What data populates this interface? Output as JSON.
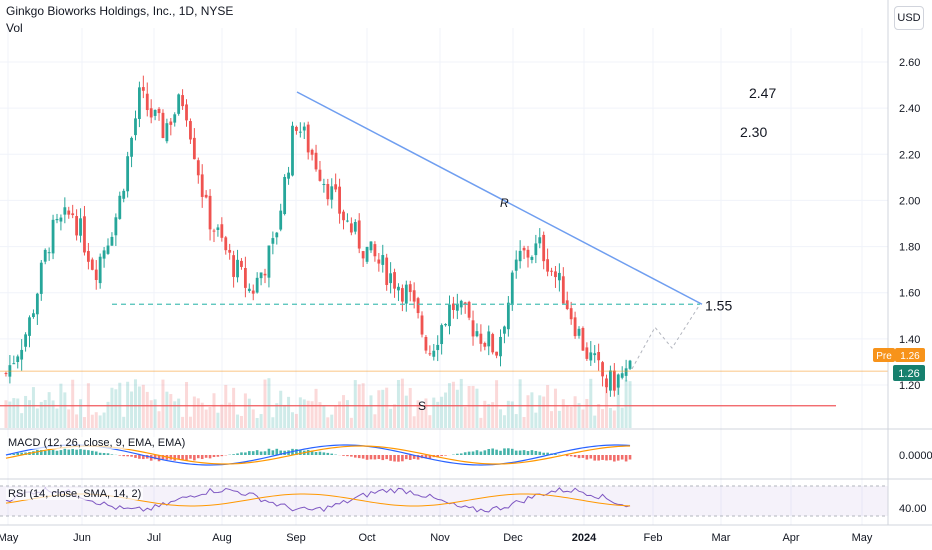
{
  "header": {
    "title": "Ginkgo Bioworks Holdings, Inc., 1D, NYSE",
    "vol_label": "Vol",
    "currency": "USD"
  },
  "colors": {
    "up": "#26a69a",
    "down": "#ef5350",
    "trendline": "#6f9ef0",
    "support_dashed": "#4cc0b6",
    "support_solid": "#f0585c",
    "pre_badge": "#f7931a",
    "last_badge": "#17806e",
    "macd": "#2962ff",
    "signal": "#ff9800",
    "rsi": "#7e57c2",
    "rsi_ma": "#ff9800"
  },
  "annotations": {
    "r_label": "R",
    "s_label": "S",
    "level_155": "1.55",
    "level_247": "2.47",
    "level_230": "2.30"
  },
  "badges": {
    "pre_label": "Pre",
    "pre_value": "1.26",
    "last_value": "1.26"
  },
  "indicators": {
    "macd_label": "MACD (12, 26, close, 9, EMA, EMA)",
    "macd_value": "0.0000",
    "rsi_label": "RSI (14, close, SMA, 14, 2)",
    "rsi_value": "40.00"
  },
  "chart_data": {
    "type": "candlestick",
    "title": "Ginkgo Bioworks Holdings, Inc., 1D, NYSE",
    "y_ticks": [
      "2.60",
      "2.40",
      "2.20",
      "2.00",
      "1.80",
      "1.60",
      "1.40",
      "1.20"
    ],
    "ylim": [
      1.1,
      2.65
    ],
    "x_ticks": [
      "May",
      "Jun",
      "Jul",
      "Aug",
      "Sep",
      "Oct",
      "Nov",
      "Dec",
      "2024",
      "Feb",
      "Mar",
      "Apr",
      "May"
    ],
    "price_path": [
      [
        "May",
        1.25
      ],
      [
        "May",
        1.45
      ],
      [
        "Jun",
        1.85
      ],
      [
        "Jun",
        1.95
      ],
      [
        "Jun",
        1.7
      ],
      [
        "Jul",
        1.95
      ],
      [
        "Jul",
        2.45
      ],
      [
        "Jul",
        2.3
      ],
      [
        "Aug",
        2.45
      ],
      [
        "Aug",
        1.95
      ],
      [
        "Aug",
        1.75
      ],
      [
        "Aug",
        1.6
      ],
      [
        "Aug",
        1.8
      ],
      [
        "Sep",
        2.35
      ],
      [
        "Sep",
        2.15
      ],
      [
        "Sep",
        1.95
      ],
      [
        "Oct",
        1.8
      ],
      [
        "Oct",
        1.7
      ],
      [
        "Oct",
        1.6
      ],
      [
        "Nov",
        1.35
      ],
      [
        "Nov",
        1.55
      ],
      [
        "Nov",
        1.45
      ],
      [
        "Dec",
        1.35
      ],
      [
        "Dec",
        1.75
      ],
      [
        "2024",
        1.8
      ],
      [
        "2024",
        1.6
      ],
      [
        "2024",
        1.35
      ],
      [
        "2024",
        1.2
      ],
      [
        "2024",
        1.26
      ]
    ],
    "resistance_line": {
      "label": "R",
      "from": [
        "Sep",
        2.47
      ],
      "to": [
        "Feb",
        1.55
      ]
    },
    "support_dashed": {
      "value": 1.55,
      "label": "1.55"
    },
    "support_solid": {
      "label": "S",
      "value": 1.11
    },
    "target_levels": [
      2.47,
      2.3
    ],
    "last_price": 1.26,
    "macd_zero": "0.0000",
    "rsi_level": "40.00"
  }
}
